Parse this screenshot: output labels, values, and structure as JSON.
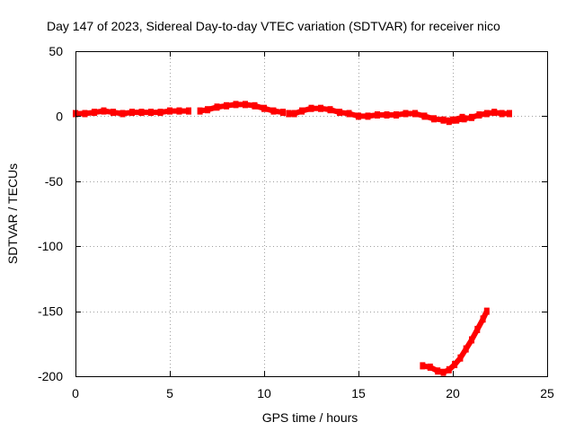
{
  "chart_data": {
    "type": "scatter",
    "title": "Day 147 of 2023, Sidereal Day-to-day VTEC variation (SDTVAR) for receiver nico",
    "xlabel": "GPS time / hours",
    "ylabel": "SDTVAR / TECUs",
    "xlim": [
      0,
      25
    ],
    "ylim": [
      -200,
      50
    ],
    "xticks": [
      0,
      5,
      10,
      15,
      20,
      25
    ],
    "yticks": [
      50,
      0,
      -50,
      -100,
      -150,
      -200
    ],
    "grid": true,
    "series": [
      {
        "name": "SDTVAR",
        "color": "#ff0000",
        "segments": [
          [
            [
              0.0,
              2
            ],
            [
              0.5,
              2
            ],
            [
              1.0,
              3
            ],
            [
              1.5,
              4
            ],
            [
              2.0,
              3
            ],
            [
              2.5,
              2
            ],
            [
              3.0,
              3
            ],
            [
              3.5,
              3
            ],
            [
              4.0,
              3
            ],
            [
              4.5,
              3
            ],
            [
              5.0,
              4
            ],
            [
              5.5,
              4
            ],
            [
              6.0,
              4
            ]
          ],
          [
            [
              6.6,
              4
            ],
            [
              7.0,
              5
            ],
            [
              7.5,
              7
            ],
            [
              8.0,
              8
            ],
            [
              8.5,
              9
            ],
            [
              9.0,
              9
            ],
            [
              9.5,
              8
            ],
            [
              10.0,
              6
            ],
            [
              10.5,
              4
            ],
            [
              11.0,
              3
            ]
          ],
          [
            [
              11.3,
              2
            ],
            [
              11.6,
              2
            ],
            [
              12.0,
              4
            ],
            [
              12.5,
              6
            ],
            [
              13.0,
              6
            ],
            [
              13.5,
              5
            ],
            [
              14.0,
              3
            ],
            [
              14.5,
              2
            ],
            [
              15.0,
              0
            ],
            [
              15.5,
              0
            ],
            [
              16.0,
              1
            ],
            [
              16.5,
              1
            ],
            [
              17.0,
              1
            ],
            [
              17.5,
              2
            ],
            [
              18.0,
              2
            ],
            [
              18.5,
              0
            ],
            [
              19.0,
              -2
            ],
            [
              19.5,
              -3
            ],
            [
              20.0,
              -3
            ],
            [
              20.5,
              -1
            ]
          ],
          [
            [
              19.8,
              -4
            ],
            [
              20.2,
              -3
            ],
            [
              20.6,
              -2
            ],
            [
              21.0,
              -1
            ],
            [
              21.4,
              1
            ],
            [
              21.8,
              2
            ],
            [
              22.2,
              3
            ],
            [
              22.6,
              2
            ],
            [
              23.0,
              2
            ]
          ],
          [
            [
              18.4,
              -192
            ],
            [
              18.8,
              -193
            ],
            [
              19.2,
              -196
            ],
            [
              19.5,
              -197
            ],
            [
              19.8,
              -195
            ],
            [
              20.1,
              -191
            ],
            [
              20.4,
              -186
            ],
            [
              20.7,
              -179
            ],
            [
              21.0,
              -172
            ],
            [
              21.3,
              -164
            ],
            [
              21.6,
              -156
            ],
            [
              21.8,
              -150
            ]
          ]
        ]
      }
    ]
  }
}
